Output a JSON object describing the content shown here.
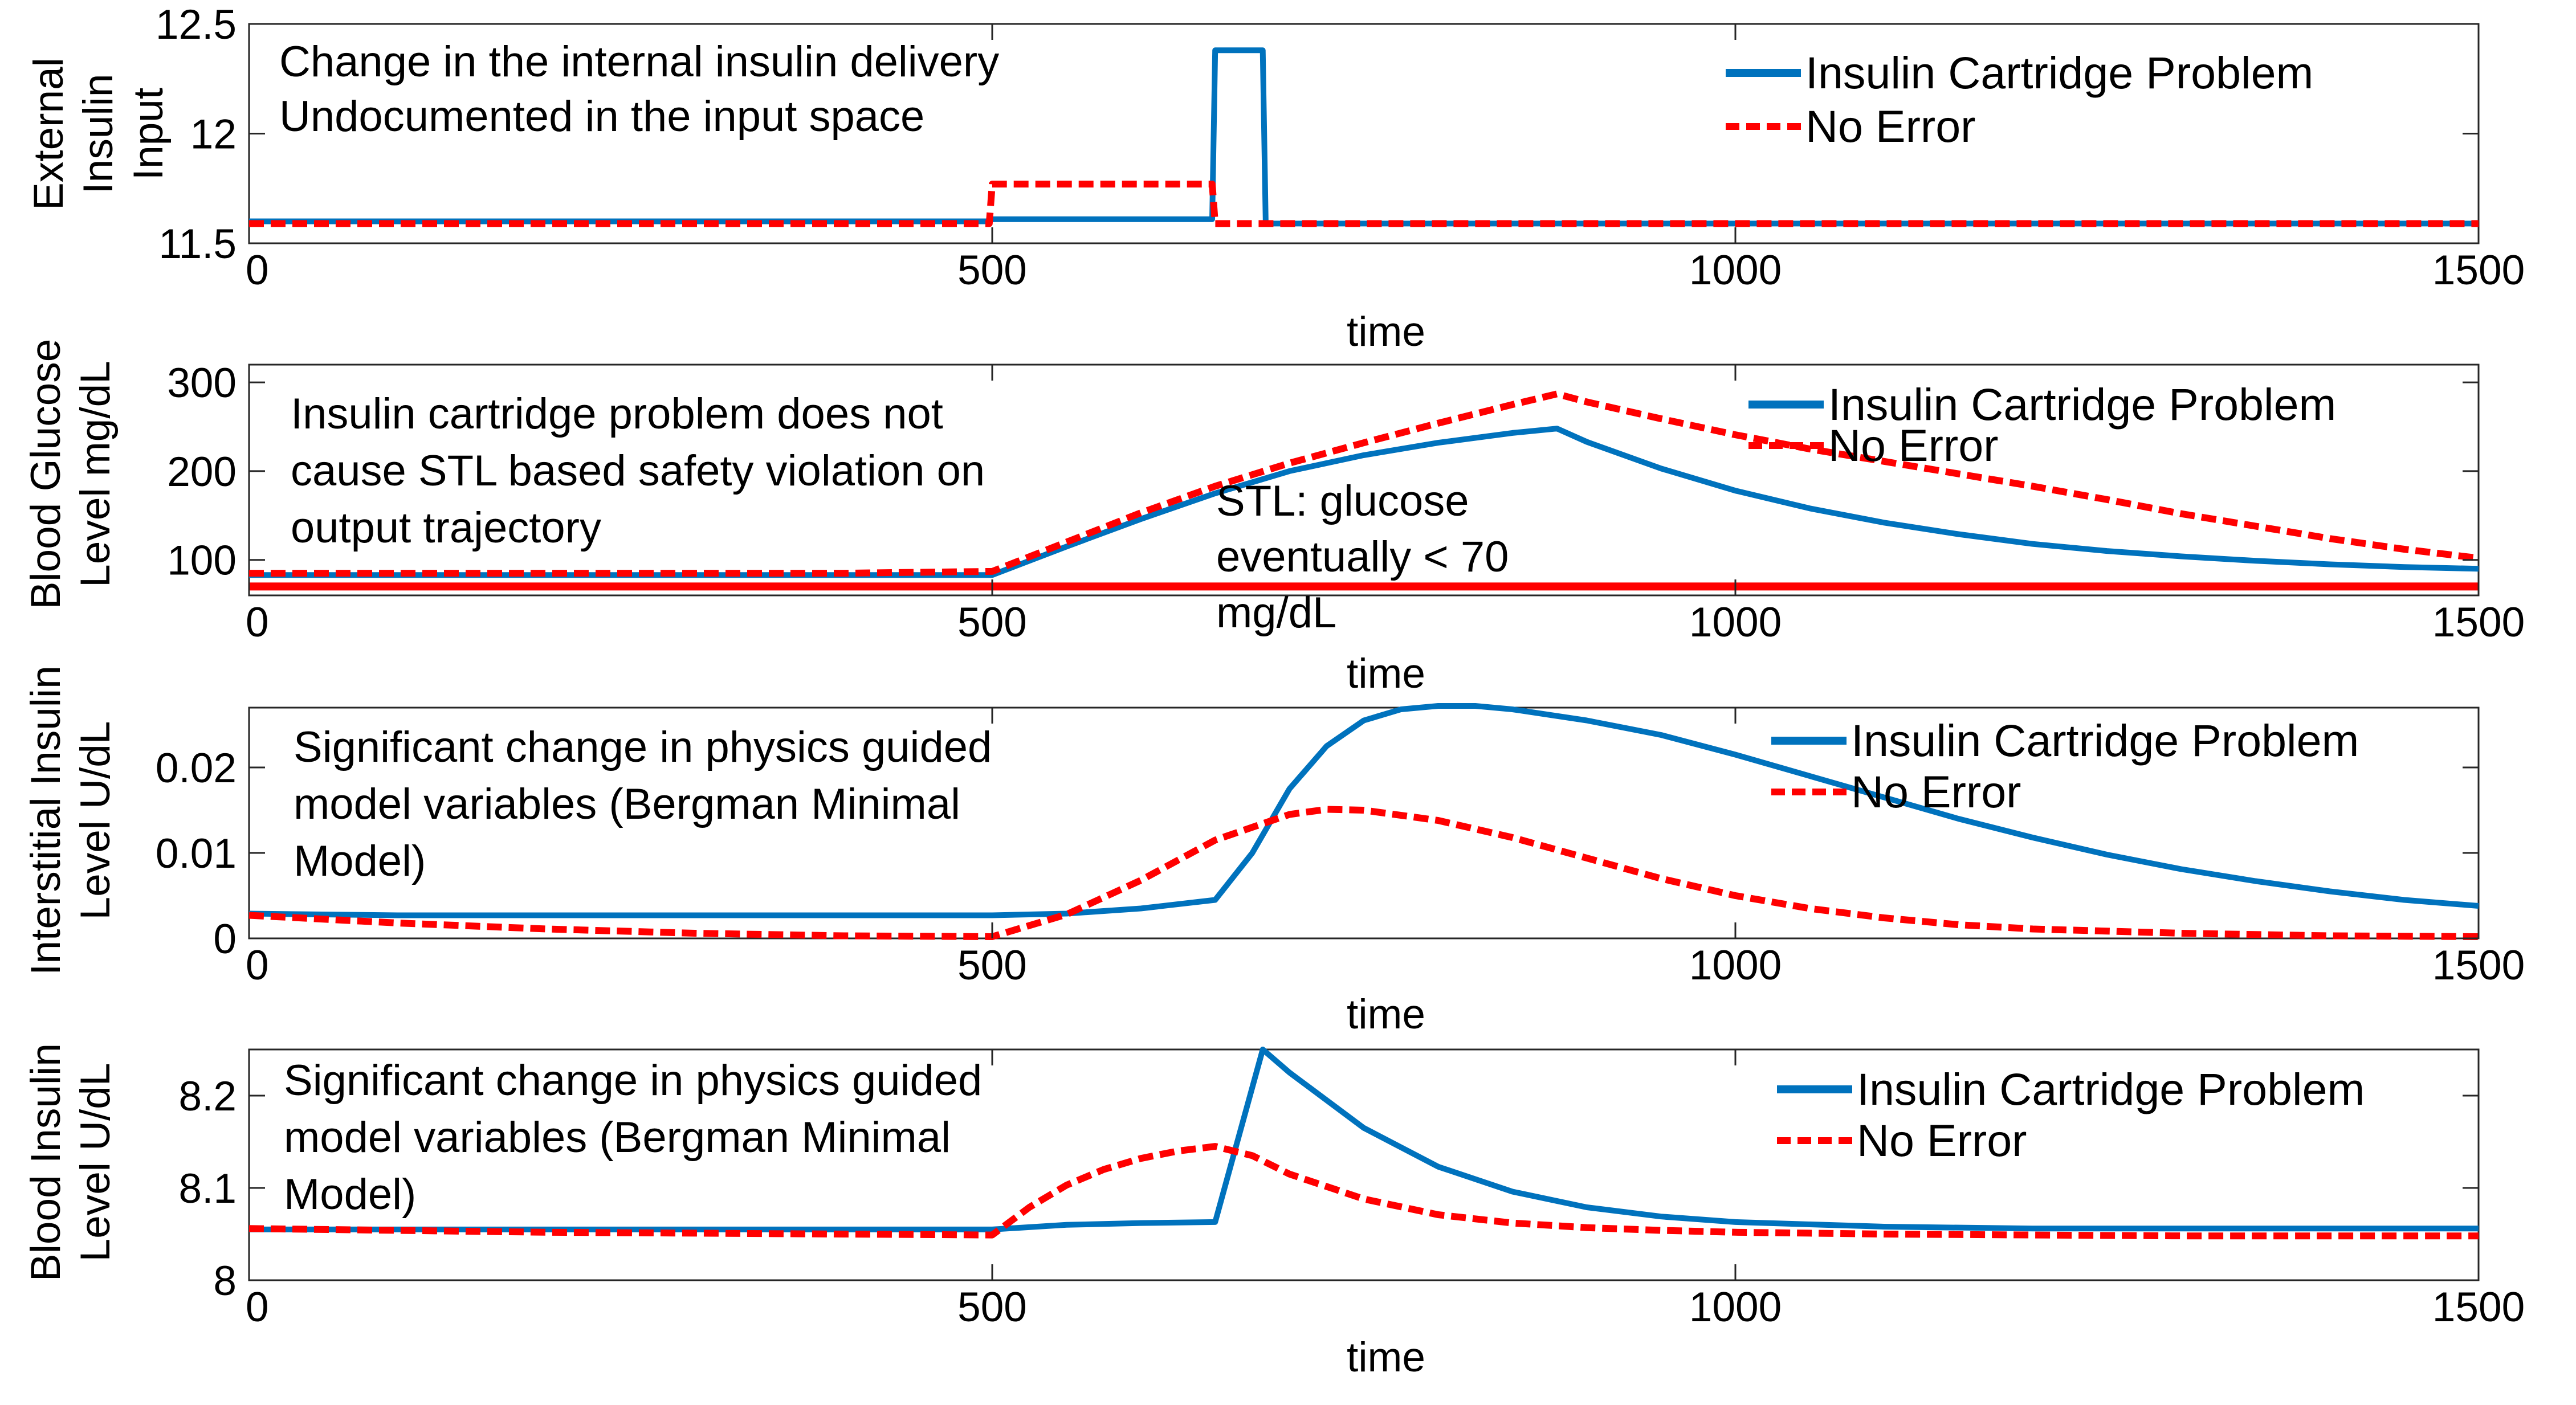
{
  "chart_data": [
    {
      "type": "line",
      "xlabel": "time",
      "ylabel_lines": [
        "External",
        "Insulin",
        "Input"
      ],
      "xlim": [
        0,
        1500
      ],
      "ylim": [
        11.5,
        12.5
      ],
      "xticks": [
        "0",
        "500",
        "1000",
        "1500"
      ],
      "yticks": [
        "11.5",
        "12",
        "12.5"
      ],
      "legend_position": "top-right",
      "annotations": [
        {
          "text": "Change in the internal insulin delivery"
        },
        {
          "text": "Undocumented in the input space"
        }
      ],
      "series": [
        {
          "name": "Insulin Cartridge Problem",
          "style": "solid",
          "color": "#0072BD",
          "points": [
            [
              0,
              11.6
            ],
            [
              498,
              11.6
            ],
            [
              500,
              11.61
            ],
            [
              648,
              11.61
            ],
            [
              650,
              12.38
            ],
            [
              682,
              12.38
            ],
            [
              684,
              11.59
            ],
            [
              1500,
              11.59
            ]
          ]
        },
        {
          "name": "No Error",
          "style": "dashed",
          "color": "#FF0000",
          "points": [
            [
              0,
              11.59
            ],
            [
              498,
              11.59
            ],
            [
              500,
              11.77
            ],
            [
              648,
              11.77
            ],
            [
              650,
              11.59
            ],
            [
              1500,
              11.59
            ]
          ]
        }
      ]
    },
    {
      "type": "line",
      "xlabel": "time",
      "ylabel_lines": [
        "Blood Glucose",
        "Level mg/dL"
      ],
      "xlim": [
        0,
        1500
      ],
      "ylim": [
        60,
        320
      ],
      "xticks": [
        "0",
        "500",
        "1000",
        "1500"
      ],
      "yticks": [
        "100",
        "200",
        "300"
      ],
      "legend_position": "top-right",
      "annotations": [
        {
          "text": "Insulin cartridge problem does not"
        },
        {
          "text": "cause STL based safety violation on"
        },
        {
          "text": "output trajectory"
        },
        {
          "text": "STL: glucose"
        },
        {
          "text": "eventually < 70"
        },
        {
          "text": "mg/dL"
        }
      ],
      "threshold": {
        "y": 70,
        "color": "#FF0000"
      },
      "series": [
        {
          "name": "Insulin Cartridge Problem",
          "style": "solid",
          "color": "#0072BD",
          "points": [
            [
              0,
              83
            ],
            [
              100,
              83
            ],
            [
              200,
              83
            ],
            [
              300,
              83
            ],
            [
              400,
              83
            ],
            [
              500,
              83
            ],
            [
              550,
              115
            ],
            [
              600,
              146
            ],
            [
              650,
              175
            ],
            [
              700,
              200
            ],
            [
              750,
              218
            ],
            [
              800,
              232
            ],
            [
              850,
              243
            ],
            [
              880,
              248
            ],
            [
              900,
              233
            ],
            [
              950,
              203
            ],
            [
              1000,
              178
            ],
            [
              1050,
              158
            ],
            [
              1100,
              142
            ],
            [
              1150,
              129
            ],
            [
              1200,
              118
            ],
            [
              1250,
              110
            ],
            [
              1300,
              104
            ],
            [
              1350,
              99
            ],
            [
              1400,
              95
            ],
            [
              1450,
              92
            ],
            [
              1500,
              90
            ]
          ]
        },
        {
          "name": "No Error",
          "style": "dashed",
          "color": "#FF0000",
          "points": [
            [
              0,
              85
            ],
            [
              100,
              85
            ],
            [
              200,
              85
            ],
            [
              300,
              85
            ],
            [
              400,
              85
            ],
            [
              500,
              87
            ],
            [
              550,
              120
            ],
            [
              600,
              153
            ],
            [
              650,
              183
            ],
            [
              700,
              209
            ],
            [
              750,
              232
            ],
            [
              800,
              254
            ],
            [
              850,
              275
            ],
            [
              880,
              287
            ],
            [
              900,
              278
            ],
            [
              950,
              259
            ],
            [
              1000,
              241
            ],
            [
              1050,
              225
            ],
            [
              1100,
              211
            ],
            [
              1150,
              197
            ],
            [
              1200,
              183
            ],
            [
              1250,
              168
            ],
            [
              1300,
              152
            ],
            [
              1350,
              138
            ],
            [
              1400,
              124
            ],
            [
              1450,
              112
            ],
            [
              1500,
              102
            ]
          ]
        }
      ]
    },
    {
      "type": "line",
      "xlabel": "time",
      "ylabel_lines": [
        "Interstitial Insulin",
        "Level U/dL"
      ],
      "xlim": [
        0,
        1500
      ],
      "ylim": [
        0,
        0.027
      ],
      "xticks": [
        "0",
        "500",
        "1000",
        "1500"
      ],
      "yticks": [
        "0",
        "0.01",
        "0.02"
      ],
      "legend_position": "top-right",
      "annotations": [
        {
          "text": "Significant change in physics guided"
        },
        {
          "text": "model variables (Bergman Minimal"
        },
        {
          "text": "Model)"
        }
      ],
      "series": [
        {
          "name": "Insulin Cartridge Problem",
          "style": "solid",
          "color": "#0072BD",
          "points": [
            [
              0,
              0.0029
            ],
            [
              100,
              0.0027
            ],
            [
              200,
              0.0027
            ],
            [
              300,
              0.0027
            ],
            [
              400,
              0.0027
            ],
            [
              500,
              0.0027
            ],
            [
              550,
              0.0029
            ],
            [
              600,
              0.0035
            ],
            [
              650,
              0.0045
            ],
            [
              675,
              0.01
            ],
            [
              700,
              0.0175
            ],
            [
              725,
              0.0225
            ],
            [
              750,
              0.0255
            ],
            [
              775,
              0.0268
            ],
            [
              800,
              0.0272
            ],
            [
              825,
              0.0272
            ],
            [
              850,
              0.0268
            ],
            [
              900,
              0.0255
            ],
            [
              950,
              0.0238
            ],
            [
              1000,
              0.0215
            ],
            [
              1050,
              0.019
            ],
            [
              1100,
              0.0165
            ],
            [
              1150,
              0.014
            ],
            [
              1200,
              0.0118
            ],
            [
              1250,
              0.0098
            ],
            [
              1300,
              0.0081
            ],
            [
              1350,
              0.0067
            ],
            [
              1400,
              0.0055
            ],
            [
              1450,
              0.0045
            ],
            [
              1500,
              0.0038
            ]
          ]
        },
        {
          "name": "No Error",
          "style": "dashed",
          "color": "#FF0000",
          "points": [
            [
              0,
              0.0027
            ],
            [
              100,
              0.0018
            ],
            [
              200,
              0.0011
            ],
            [
              300,
              0.0006
            ],
            [
              400,
              0.0003
            ],
            [
              500,
              0.0002
            ],
            [
              550,
              0.0028
            ],
            [
              600,
              0.0068
            ],
            [
              650,
              0.0115
            ],
            [
              700,
              0.0145
            ],
            [
              725,
              0.0151
            ],
            [
              750,
              0.015
            ],
            [
              800,
              0.0138
            ],
            [
              850,
              0.0118
            ],
            [
              900,
              0.0094
            ],
            [
              950,
              0.007
            ],
            [
              1000,
              0.005
            ],
            [
              1050,
              0.0035
            ],
            [
              1100,
              0.0024
            ],
            [
              1150,
              0.0016
            ],
            [
              1200,
              0.0011
            ],
            [
              1300,
              0.0006
            ],
            [
              1400,
              0.0003
            ],
            [
              1500,
              0.0002
            ]
          ]
        }
      ]
    },
    {
      "type": "line",
      "xlabel": "time",
      "ylabel_lines": [
        "Blood Insulin",
        "Level U/dL"
      ],
      "xlim": [
        0,
        1500
      ],
      "ylim": [
        8.0,
        8.25
      ],
      "xticks": [
        "0",
        "500",
        "1000",
        "1500"
      ],
      "yticks": [
        "8",
        "8.1",
        "8.2"
      ],
      "legend_position": "top-right",
      "annotations": [
        {
          "text": "Significant change in physics guided"
        },
        {
          "text": "model variables (Bergman Minimal"
        },
        {
          "text": "Model)"
        }
      ],
      "series": [
        {
          "name": "Insulin Cartridge Problem",
          "style": "solid",
          "color": "#0072BD",
          "points": [
            [
              0,
              8.055
            ],
            [
              100,
              8.055
            ],
            [
              200,
              8.055
            ],
            [
              300,
              8.055
            ],
            [
              400,
              8.055
            ],
            [
              500,
              8.055
            ],
            [
              550,
              8.06
            ],
            [
              600,
              8.062
            ],
            [
              650,
              8.063
            ],
            [
              682,
              8.25
            ],
            [
              700,
              8.225
            ],
            [
              750,
              8.165
            ],
            [
              800,
              8.123
            ],
            [
              850,
              8.096
            ],
            [
              900,
              8.079
            ],
            [
              950,
              8.069
            ],
            [
              1000,
              8.063
            ],
            [
              1100,
              8.058
            ],
            [
              1200,
              8.056
            ],
            [
              1300,
              8.056
            ],
            [
              1400,
              8.056
            ],
            [
              1500,
              8.056
            ]
          ]
        },
        {
          "name": "No Error",
          "style": "dashed",
          "color": "#FF0000",
          "points": [
            [
              0,
              8.056
            ],
            [
              100,
              8.054
            ],
            [
              200,
              8.052
            ],
            [
              300,
              8.051
            ],
            [
              400,
              8.05
            ],
            [
              500,
              8.049
            ],
            [
              525,
              8.079
            ],
            [
              550,
              8.103
            ],
            [
              575,
              8.12
            ],
            [
              600,
              8.132
            ],
            [
              625,
              8.14
            ],
            [
              650,
              8.145
            ],
            [
              675,
              8.135
            ],
            [
              700,
              8.115
            ],
            [
              750,
              8.088
            ],
            [
              800,
              8.071
            ],
            [
              850,
              8.062
            ],
            [
              900,
              8.057
            ],
            [
              950,
              8.054
            ],
            [
              1000,
              8.052
            ],
            [
              1100,
              8.05
            ],
            [
              1200,
              8.049
            ],
            [
              1300,
              8.048
            ],
            [
              1400,
              8.048
            ],
            [
              1500,
              8.048
            ]
          ]
        }
      ]
    }
  ]
}
